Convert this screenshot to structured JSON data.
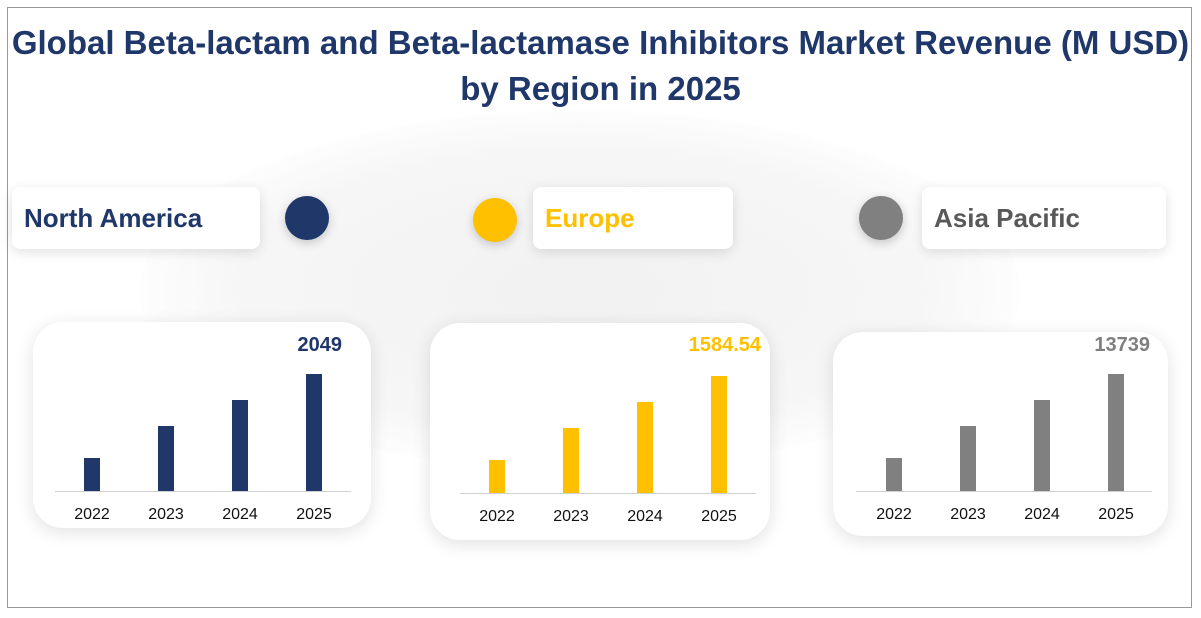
{
  "title": "Global Beta-lactam and Beta-lactamase Inhibitors Market Revenue  (M USD) by Region in 2025",
  "chart_data": [
    {
      "type": "bar",
      "region": "North America",
      "color": "#1f3769",
      "categories": [
        "2022",
        "2023",
        "2024",
        "2025"
      ],
      "values": [
        578,
        1138,
        1594,
        2049
      ],
      "value_label": "2049"
    },
    {
      "type": "bar",
      "region": "Europe",
      "color": "#ffc000",
      "categories": [
        "2022",
        "2023",
        "2024",
        "2025"
      ],
      "values": [
        447,
        880,
        1232,
        1584.54
      ],
      "value_label": "1584.54"
    },
    {
      "type": "bar",
      "region": "Asia Pacific",
      "color": "#808080",
      "categories": [
        "2022",
        "2023",
        "2024",
        "2025"
      ],
      "values": [
        3876,
        7633,
        10686,
        13739
      ],
      "value_label": "13739"
    }
  ]
}
